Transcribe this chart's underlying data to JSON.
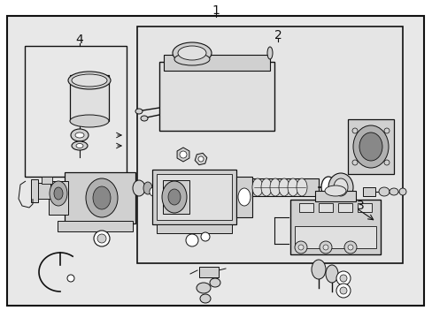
{
  "bg": "#e8e8e8",
  "white": "#ffffff",
  "black": "#111111",
  "gray_fill": "#d0d0d0",
  "gray_mid": "#b0b0b0",
  "gray_dark": "#888888",
  "gray_light": "#e0e0e0",
  "label_1": "1",
  "label_2": "2",
  "label_3": "3",
  "label_4": "4",
  "fig_width": 4.89,
  "fig_height": 3.6,
  "dpi": 100
}
